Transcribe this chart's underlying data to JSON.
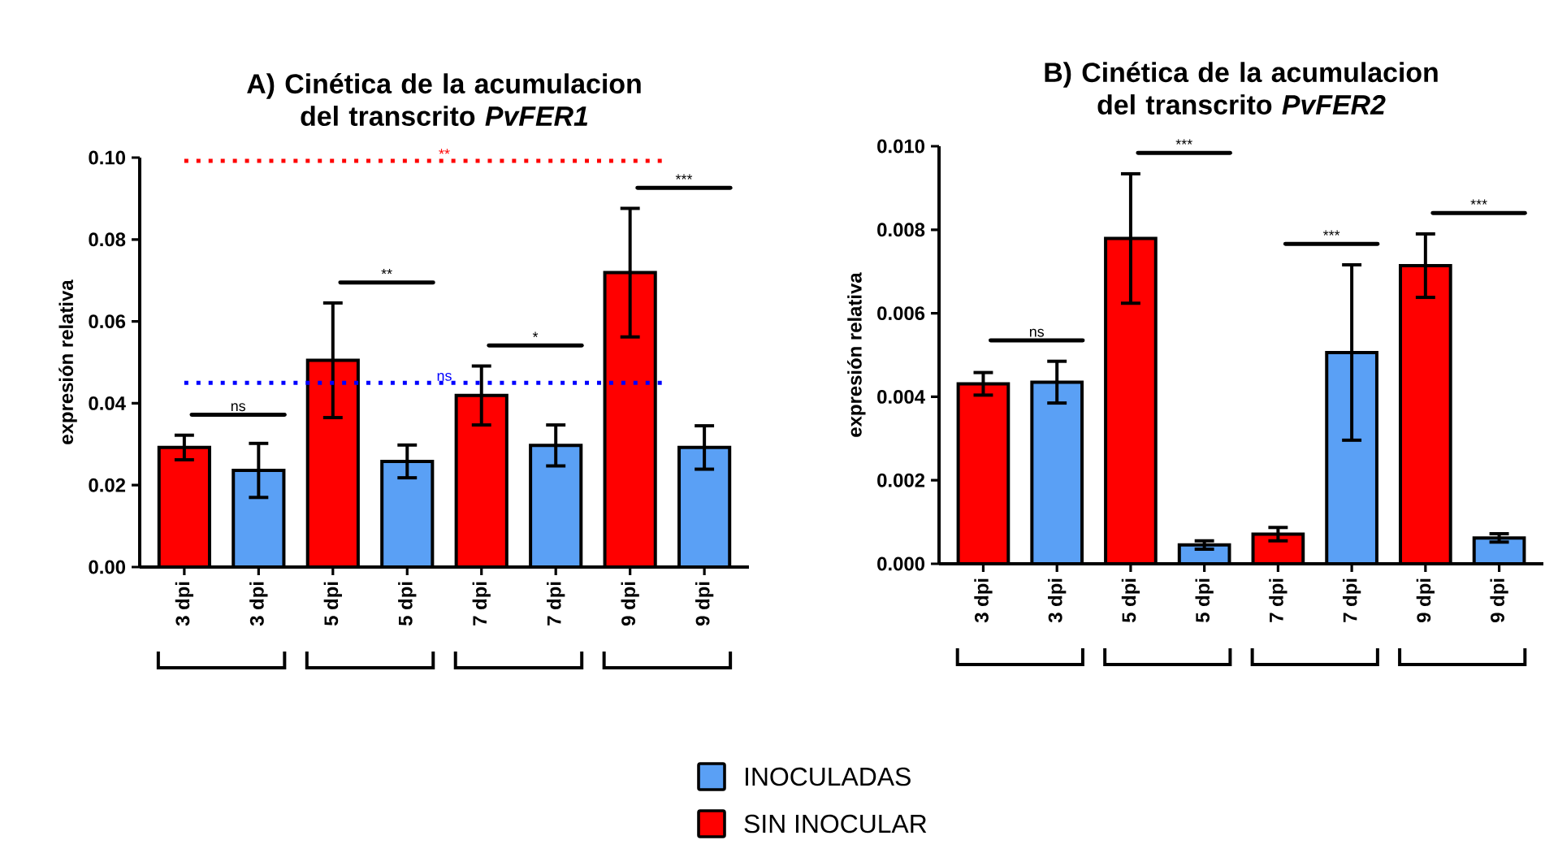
{
  "chart_data": [
    {
      "type": "bar",
      "title": "A)  Cinética de la acumulacion del transcrito *PvFER1*",
      "ylabel": "expresión relativa",
      "categories": [
        "3 dpi",
        "3 dpi",
        "5 dpi",
        "5 dpi",
        "7 dpi",
        "7 dpi",
        "9 dpi",
        "9 dpi"
      ],
      "series": [
        {
          "name": "INOCULADAS",
          "color": "#5aa0f5",
          "values": [
            null,
            0.0236,
            null,
            0.0258,
            null,
            0.0297,
            null,
            0.0292
          ],
          "errors": [
            null,
            0.0066,
            null,
            0.004,
            null,
            0.005,
            null,
            0.0053
          ]
        },
        {
          "name": "SIN INOCULAR",
          "color": "#ff0000",
          "values": [
            0.0292,
            null,
            0.0505,
            null,
            0.0419,
            null,
            0.0719,
            null
          ],
          "errors": [
            0.003,
            null,
            0.014,
            null,
            0.0072,
            null,
            0.0157,
            null
          ]
        }
      ],
      "ylim": [
        0,
        0.1
      ],
      "yticks": [
        {
          "value": 0,
          "label": "0.00"
        },
        {
          "value": 0.02,
          "label": "0.02"
        },
        {
          "value": 0.04,
          "label": "0.04"
        },
        {
          "value": 0.06,
          "label": "0.06"
        },
        {
          "value": 0.08,
          "label": "0.08"
        },
        {
          "value": 0.1,
          "label": "0.10"
        }
      ],
      "ref_lines": [
        {
          "axis": "y",
          "value": 0.0992,
          "label": "**",
          "color": "#ff0000",
          "line_style": "dotted"
        },
        {
          "axis": "y",
          "value": 0.045,
          "label": "ns",
          "color": "#0000ff",
          "line_style": "dotted"
        }
      ],
      "annotations": [
        "ns",
        "**",
        "*",
        "***"
      ],
      "legend": "bottom"
    },
    {
      "type": "bar",
      "title": "B) Cinética de la acumulacion del transcrito *PvFER2*",
      "ylabel": "expresión relativa",
      "categories": [
        "3 dpi",
        "3 dpi",
        "5 dpi",
        "5 dpi",
        "7 dpi",
        "7 dpi",
        "9 dpi",
        "9 dpi"
      ],
      "series": [
        {
          "color": "#5aa0f5",
          "values": [
            null,
            0.00435,
            null,
            0.00045,
            null,
            0.00506,
            null,
            0.00062
          ],
          "errors": [
            null,
            0.0005,
            null,
            0.0001,
            null,
            0.0021,
            null,
            0.0001
          ]
        },
        {
          "color": "#ff0000",
          "values": [
            0.00431,
            null,
            0.00779,
            null,
            0.00071,
            null,
            0.00714,
            null
          ],
          "errors": [
            0.00027,
            null,
            0.00155,
            null,
            0.00016,
            null,
            0.00076,
            null
          ]
        }
      ],
      "ylim": [
        0,
        0.01
      ],
      "yticks": [
        {
          "value": 0,
          "label": "0.000"
        },
        {
          "value": 0.002,
          "label": "0.002"
        },
        {
          "value": 0.004,
          "label": "0.004"
        },
        {
          "value": 0.006,
          "label": "0.006"
        },
        {
          "value": 0.008,
          "label": "0.008"
        },
        {
          "value": 0.01,
          "label": "0.010"
        }
      ],
      "annotations": [
        "ns",
        "***",
        "***",
        "***"
      ]
    }
  ]
}
